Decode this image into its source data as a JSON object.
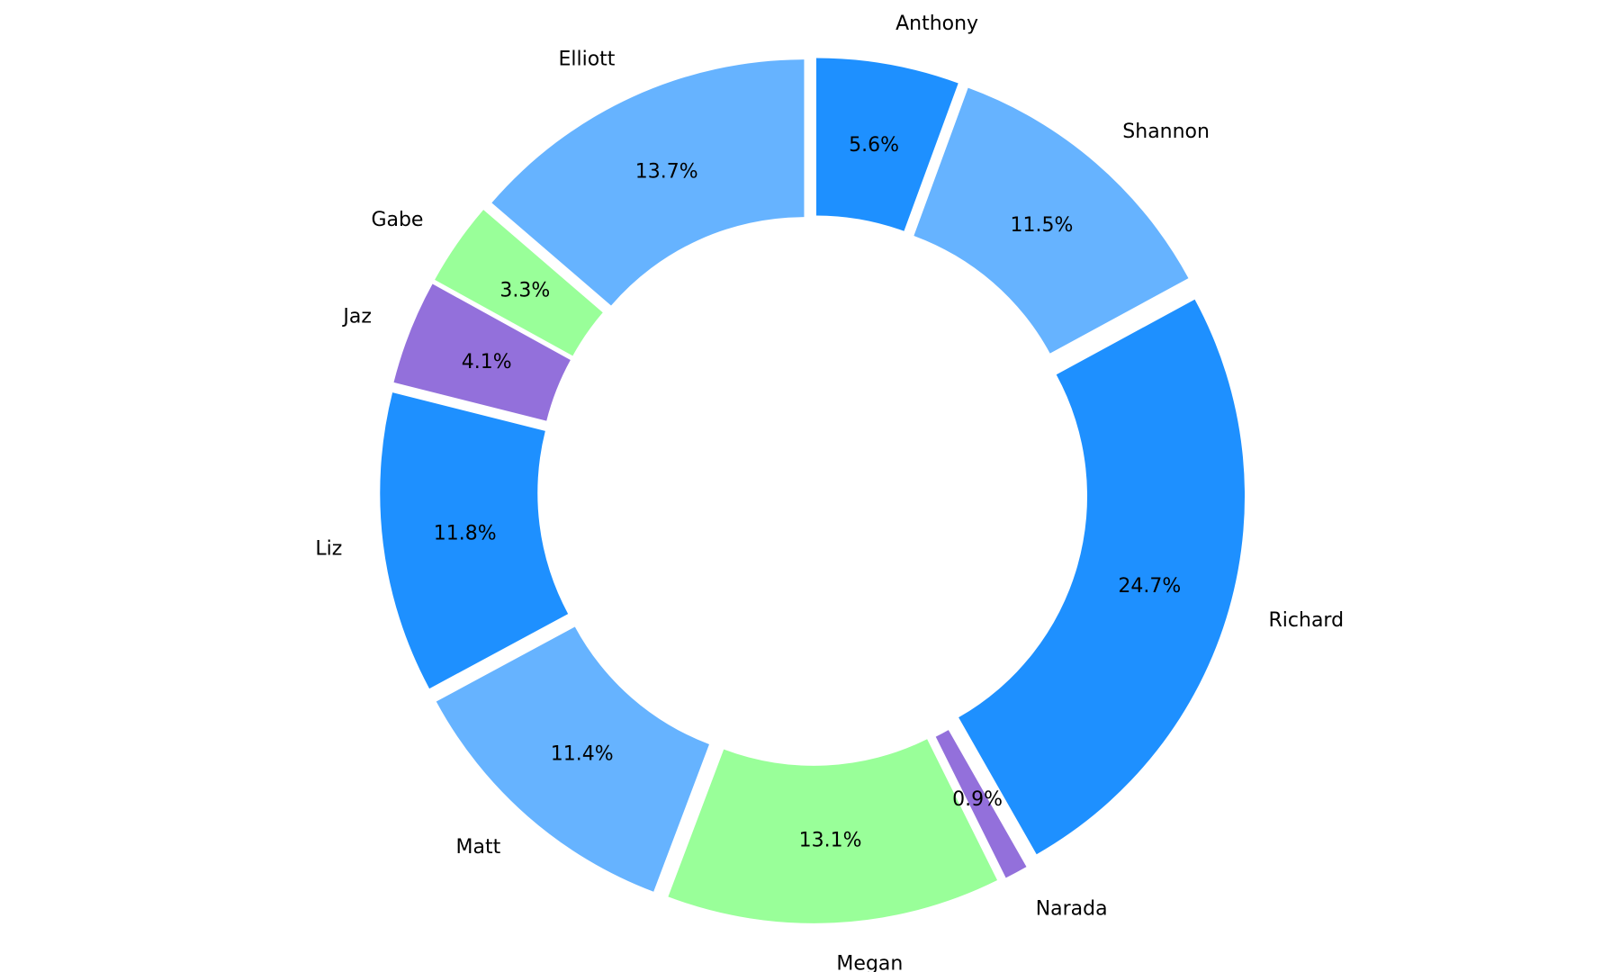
{
  "chart_data": {
    "type": "pie",
    "title": "",
    "labels": [
      "Anthony",
      "Shannon",
      "Richard",
      "Narada",
      "Megan",
      "Matt",
      "Liz",
      "Jaz",
      "Gabe",
      "Elliott"
    ],
    "values": [
      5.6,
      11.5,
      24.7,
      0.9,
      13.1,
      11.4,
      11.8,
      4.1,
      3.3,
      13.7
    ],
    "pct_labels": [
      "5.6%",
      "11.5%",
      "24.7%",
      "0.9%",
      "13.1%",
      "11.4%",
      "11.8%",
      "4.1%",
      "3.3%",
      "13.7%"
    ],
    "colors": [
      "#1e90ff",
      "#66b3ff",
      "#1e90ff",
      "#9370db",
      "#99ff99",
      "#66b3ff",
      "#1e90ff",
      "#9370db",
      "#99ff99",
      "#66b3ff"
    ],
    "start_angle_deg": 90,
    "direction": "clockwise",
    "donut": true,
    "exploded": true,
    "legend": "none"
  }
}
